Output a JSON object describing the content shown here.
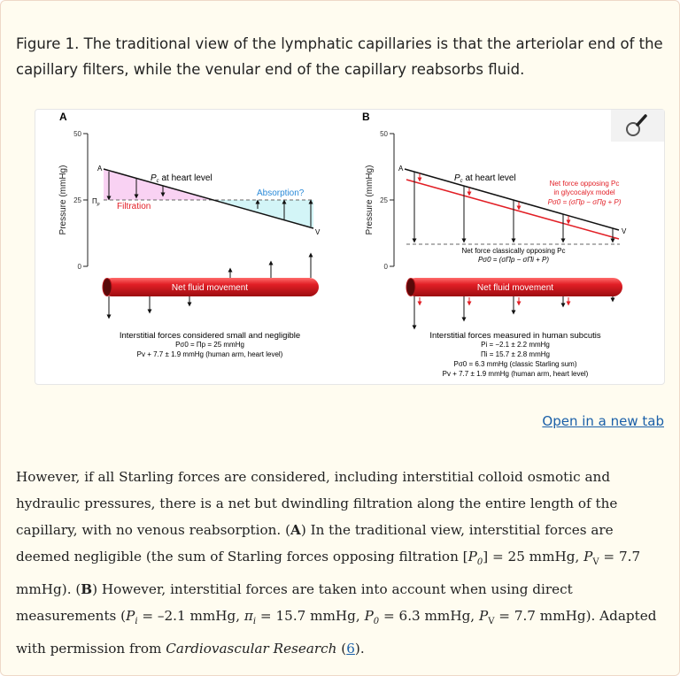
{
  "caption_title": "Figure 1. The traditional view of the lymphatic capillaries is that the arteriolar end of the capillary filters, while the venular end of the capillary reabsorbs fluid.",
  "figure": {
    "zoom_icon": "magnifier-icon",
    "panel_a": {
      "label": "A",
      "y_axis_label": "Pressure (mmHg)",
      "ticks": [
        "50",
        "25",
        "0"
      ],
      "point_a": "A",
      "point_v": "V",
      "pc_label": "P",
      "pc_sub": "c",
      "pc_rest": " at heart level",
      "pi_label": "Π",
      "pi_sub": "p",
      "filtration": "Filtration",
      "absorption": "Absorption?",
      "vessel_label": "Net fluid movement",
      "captions": [
        "Interstitial forces considered small and negligible",
        "Pσ0 = Πp = 25 mmHg",
        "Pv + 7.7 ± 1.9 mmHg (human arm, heart level)"
      ]
    },
    "panel_b": {
      "label": "B",
      "y_axis_label": "Pressure (mmHg)",
      "ticks": [
        "50",
        "25",
        "0"
      ],
      "point_a": "A",
      "point_v": "V",
      "pc_label": "P",
      "pc_sub": "c",
      "pc_rest": " at heart level",
      "glycocalyx": [
        "Net force opposing Pc",
        "in glycocalyx model",
        "Pσ0 = (σΠp − σΠg + P)"
      ],
      "classic": [
        "Net force classically opposing Pc",
        "Pσ0 = (σΠp − σΠi + P)"
      ],
      "vessel_label": "Net fluid movement",
      "captions": [
        "Interstitial forces measured in human subcutis",
        "Pi = −2.1 ± 2.2 mmHg",
        "Πi = 15.7 ± 2.8 mmHg",
        "Pσ0 = 6.3 mmHg (classic Starling sum)",
        "Pv + 7.7 ± 1.9 mmHg (human arm, heart level)"
      ]
    },
    "colors": {
      "red": "#e21f26",
      "pink_fill": "#f9d2f3",
      "cyan_fill": "#d3f5f7",
      "blue_text": "#2a8ad8"
    }
  },
  "open_link": "Open in a new tab",
  "body": {
    "s1": "However, if all Starling forces are considered, including interstitial colloid osmotic and hydraulic pressures, there is a net but dwindling filtration along the entire length of the capillary, with no venous reabsorption. (",
    "a": "A",
    "s2": ") In the traditional view, interstitial forces are deemed negligible (the sum of Starling forces opposing filtration [",
    "p0": "P",
    "p0sub": "0",
    "s3": "] = 25 mmHg, ",
    "pv": "P",
    "pvsub": "V",
    "s4": " = 7.7 mmHg). (",
    "b": "B",
    "s5": ") However, interstitial forces are taken into account when using direct measurements (",
    "pi": "P",
    "pisub": "i",
    "s6": " = –2.1 mmHg, ",
    "pii": "π",
    "piisub": "i",
    "s7": " = 15.7 mmHg, ",
    "p02": "P",
    "p02sub": "0",
    "s8": " = 6.3 mmHg, ",
    "pv2": "P",
    "pv2sub": "V",
    "s9": " = 7.7 mmHg). Adapted with permission from ",
    "journal": "Cardiovascular Research",
    "s10": " (",
    "ref": "6",
    "s11": ")."
  }
}
